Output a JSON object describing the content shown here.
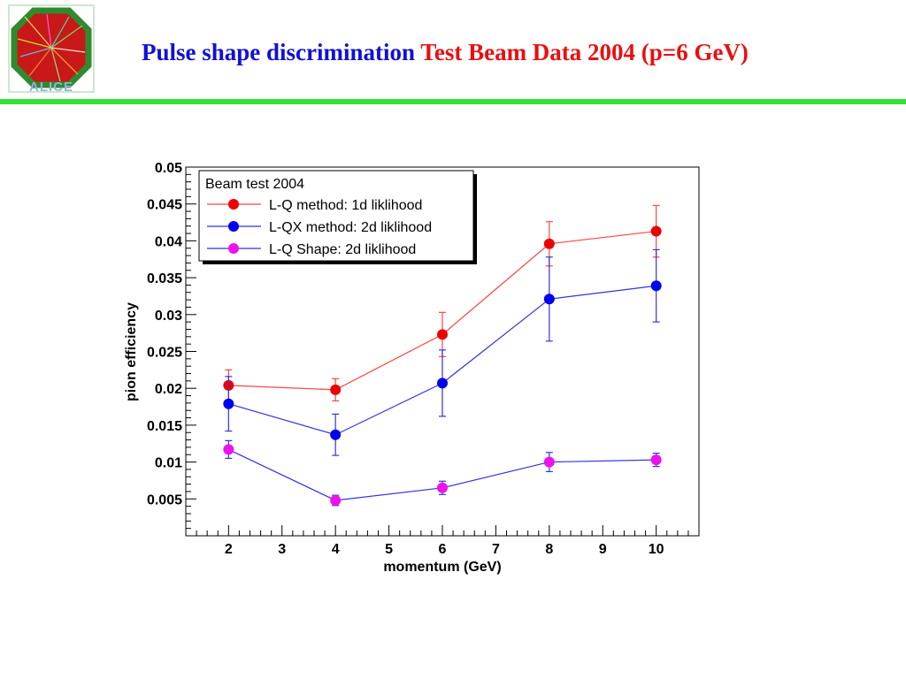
{
  "header": {
    "title_part1": "Pulse shape discrimination",
    "title_part2": "Test Beam Data 2004 (p=6 GeV)",
    "logo_text": "ALICE",
    "divider_color": "#33e033"
  },
  "colors": {
    "title_blue": "#1010d8",
    "title_red": "#e81010"
  },
  "chart_data": {
    "type": "scatter",
    "title": "",
    "xlabel": "momentum (GeV)",
    "ylabel": "pion efficiency",
    "xlim": [
      1.2,
      10.8
    ],
    "ylim": [
      0,
      0.05
    ],
    "x_ticks": [
      2,
      3,
      4,
      5,
      6,
      7,
      8,
      9,
      10
    ],
    "x_tick_labels": [
      "2",
      "3",
      "4",
      "5",
      "6",
      "7",
      "8",
      "9",
      "10"
    ],
    "y_ticks": [
      0.005,
      0.01,
      0.015,
      0.02,
      0.025,
      0.03,
      0.035,
      0.04,
      0.045,
      0.05
    ],
    "y_tick_labels": [
      "0.005",
      "0.01",
      "0.015",
      "0.02",
      "0.025",
      "0.03",
      "0.035",
      "0.04",
      "0.045",
      "0.05"
    ],
    "grid": false,
    "legend": {
      "title": "Beam test 2004",
      "placement": "top-left"
    },
    "series": [
      {
        "name": "L-Q method: 1d liklihood",
        "color": "#ee0000",
        "line_color": "#ff4444",
        "x": [
          2,
          4,
          6,
          8,
          10
        ],
        "y": [
          0.0204,
          0.0198,
          0.0273,
          0.0396,
          0.0413
        ],
        "err": [
          0.0021,
          0.0015,
          0.003,
          0.003,
          0.0035
        ]
      },
      {
        "name": "L-QX method: 2d liklihood",
        "color": "#0000ee",
        "line_color": "#3333dd",
        "x": [
          2,
          4,
          6,
          8,
          10
        ],
        "y": [
          0.0179,
          0.0137,
          0.0207,
          0.0321,
          0.0339
        ],
        "err": [
          0.0037,
          0.0028,
          0.0045,
          0.0057,
          0.0049
        ]
      },
      {
        "name": "L-Q Shape: 2d liklihood",
        "color": "#ee11ee",
        "line_color": "#3333dd",
        "x": [
          2,
          4,
          6,
          8,
          10
        ],
        "y": [
          0.0117,
          0.0048,
          0.0065,
          0.01,
          0.0103
        ],
        "err": [
          0.0012,
          0.0007,
          0.0009,
          0.0013,
          0.0009
        ]
      }
    ]
  }
}
